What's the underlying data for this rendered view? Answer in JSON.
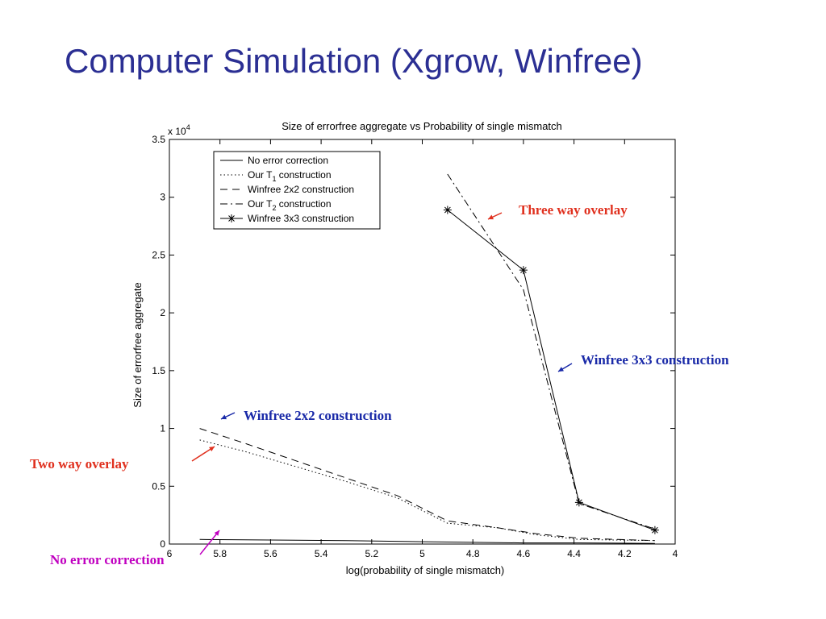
{
  "slide": {
    "title": "Computer Simulation (Xgrow, Winfree)"
  },
  "colors": {
    "title": "#2b2f93",
    "annotation_blue": "#1a2aa8",
    "annotation_red": "#e0301e",
    "annotation_magenta": "#c000c0"
  },
  "chart_data": {
    "type": "line",
    "title": "Size of errorfree aggregate vs Probability of single mismatch",
    "xlabel": "log(probability of single mismatch)",
    "ylabel": "Size of errorfree aggregate",
    "y_multiplier": "x 10",
    "y_multiplier_exp": "4",
    "xlim": [
      6,
      4
    ],
    "ylim": [
      0,
      3.5
    ],
    "x_reversed": true,
    "x_ticks": [
      6,
      5.8,
      5.6,
      5.4,
      5.2,
      5,
      4.8,
      4.6,
      4.4,
      4.2,
      4
    ],
    "y_ticks": [
      0,
      0.5,
      1,
      1.5,
      2,
      2.5,
      3,
      3.5
    ],
    "legend_position": "top-left",
    "series": [
      {
        "name": "No error correction",
        "style": "solid",
        "x": [
          5.88,
          5.6,
          5.3,
          5.0,
          4.6,
          4.38,
          4.08
        ],
        "y": [
          0.04,
          0.035,
          0.03,
          0.02,
          0.01,
          0.01,
          0.005
        ]
      },
      {
        "name": "Our T",
        "sub": "1",
        "name_suffix": "construction",
        "style": "dotted",
        "x": [
          5.88,
          5.7,
          5.5,
          5.3,
          5.1,
          4.9,
          4.7,
          4.55,
          4.38,
          4.08
        ],
        "y": [
          0.9,
          0.8,
          0.67,
          0.54,
          0.4,
          0.18,
          0.14,
          0.08,
          0.04,
          0.03
        ]
      },
      {
        "name": "Winfree 2x2 construction",
        "style": "dashed",
        "x": [
          5.88,
          5.7,
          5.5,
          5.3,
          5.1,
          4.9,
          4.7,
          4.55,
          4.38,
          4.08
        ],
        "y": [
          1.0,
          0.87,
          0.72,
          0.57,
          0.42,
          0.2,
          0.14,
          0.09,
          0.05,
          0.03
        ]
      },
      {
        "name": "Our T",
        "sub": "2",
        "name_suffix": "construction",
        "style": "dashdot",
        "x": [
          4.9,
          4.6,
          4.38,
          4.08
        ],
        "y": [
          3.2,
          2.2,
          0.35,
          0.13
        ]
      },
      {
        "name": "Winfree 3x3 construction",
        "style": "solid-star",
        "x": [
          4.9,
          4.6,
          4.38,
          4.08
        ],
        "y": [
          2.89,
          2.37,
          0.36,
          0.12
        ]
      }
    ],
    "annotations": [
      {
        "text": "Three way overlay",
        "color": "annotation_red"
      },
      {
        "text": "Winfree 3x3 construction",
        "color": "annotation_blue"
      },
      {
        "text": "Winfree 2x2 construction",
        "color": "annotation_blue"
      },
      {
        "text": "Two way overlay",
        "color": "annotation_red"
      },
      {
        "text": "No error correction",
        "color": "annotation_magenta"
      }
    ]
  }
}
